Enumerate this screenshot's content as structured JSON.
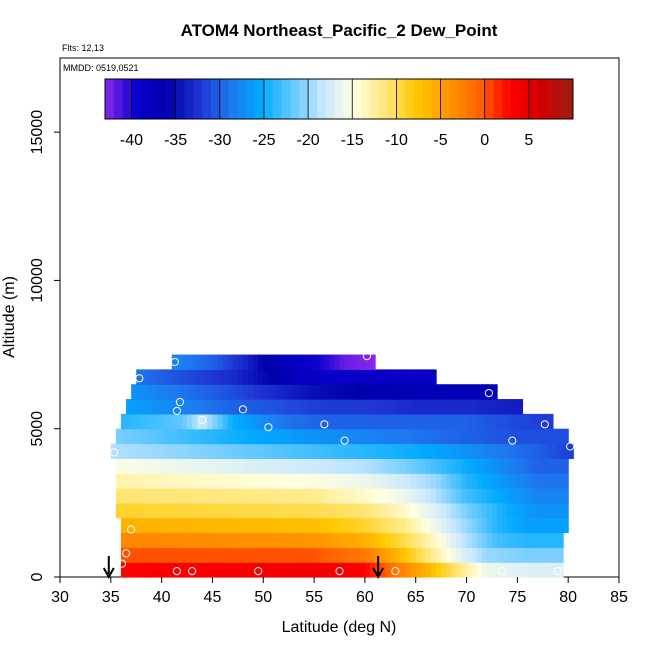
{
  "chart_data": {
    "type": "heatmap",
    "title": "ATOM4 Northeast_Pacific_2 Dew_Point",
    "flights_label": "Flts: 12,13",
    "date_label": "MMDD: 0519,0521",
    "xlabel": "Latitude (deg N)",
    "ylabel": "Altitude (m)",
    "xlim": [
      30,
      85
    ],
    "ylim": [
      0,
      17500
    ],
    "x_ticks": [
      "30",
      "35",
      "40",
      "45",
      "50",
      "55",
      "60",
      "65",
      "70",
      "75",
      "80",
      "85"
    ],
    "y_ticks": [
      "0",
      "5000",
      "10000",
      "15000"
    ],
    "colorbar": {
      "range": [
        -43,
        10
      ],
      "tick_labels": [
        "-40",
        "-35",
        "-30",
        "-25",
        "-20",
        "-15",
        "-10",
        "-5",
        "0",
        "5"
      ]
    },
    "layers": [
      {
        "alt": 250,
        "lat_start": 36,
        "lat_end": 79.5,
        "values": [
          [
            36,
            3
          ],
          [
            55,
            4
          ],
          [
            60,
            3
          ],
          [
            63,
            -2
          ],
          [
            66,
            -6
          ],
          [
            69,
            -11
          ],
          [
            72,
            -16
          ],
          [
            76,
            -17
          ],
          [
            79.5,
            -17
          ]
        ]
      },
      {
        "alt": 750,
        "lat_start": 36,
        "lat_end": 79.5,
        "values": [
          [
            36,
            0
          ],
          [
            55,
            0
          ],
          [
            60,
            -2
          ],
          [
            63,
            -6
          ],
          [
            66,
            -11
          ],
          [
            69,
            -16
          ],
          [
            72,
            -20
          ],
          [
            76,
            -21
          ],
          [
            79.5,
            -21
          ]
        ]
      },
      {
        "alt": 1250,
        "lat_start": 36,
        "lat_end": 79.5,
        "values": [
          [
            36,
            -3
          ],
          [
            55,
            -4
          ],
          [
            60,
            -6
          ],
          [
            64,
            -10
          ],
          [
            67,
            -14
          ],
          [
            70,
            -19
          ],
          [
            73,
            -23
          ],
          [
            76,
            -24
          ],
          [
            79.5,
            -24
          ]
        ]
      },
      {
        "alt": 1750,
        "lat_start": 36,
        "lat_end": 80,
        "values": [
          [
            36,
            -6
          ],
          [
            55,
            -7
          ],
          [
            60,
            -9
          ],
          [
            64,
            -12
          ],
          [
            67,
            -16
          ],
          [
            70,
            -20
          ],
          [
            73,
            -24
          ],
          [
            76,
            -26
          ],
          [
            80,
            -26
          ]
        ]
      },
      {
        "alt": 2250,
        "lat_start": 35.5,
        "lat_end": 80,
        "values": [
          [
            35.5,
            -9
          ],
          [
            55,
            -10
          ],
          [
            60,
            -11
          ],
          [
            64,
            -14
          ],
          [
            67,
            -17
          ],
          [
            70,
            -21
          ],
          [
            74,
            -25
          ],
          [
            77,
            -27
          ],
          [
            80,
            -27
          ]
        ]
      },
      {
        "alt": 2750,
        "lat_start": 35.5,
        "lat_end": 80,
        "values": [
          [
            35.5,
            -11
          ],
          [
            55,
            -12
          ],
          [
            60,
            -14
          ],
          [
            64,
            -16
          ],
          [
            67,
            -19
          ],
          [
            70,
            -23
          ],
          [
            74,
            -26
          ],
          [
            77,
            -28
          ],
          [
            80,
            -28
          ]
        ]
      },
      {
        "alt": 3250,
        "lat_start": 35.5,
        "lat_end": 80,
        "values": [
          [
            35.5,
            -13
          ],
          [
            55,
            -15
          ],
          [
            60,
            -16
          ],
          [
            64,
            -18
          ],
          [
            67,
            -20
          ],
          [
            70,
            -24
          ],
          [
            74,
            -27
          ],
          [
            77,
            -29
          ],
          [
            80,
            -29
          ]
        ]
      },
      {
        "alt": 3750,
        "lat_start": 35.5,
        "lat_end": 80,
        "values": [
          [
            35.5,
            -15
          ],
          [
            55,
            -18
          ],
          [
            60,
            -19
          ],
          [
            64,
            -21
          ],
          [
            67,
            -23
          ],
          [
            70,
            -25
          ],
          [
            74,
            -28
          ],
          [
            77,
            -30
          ],
          [
            80,
            -30
          ]
        ]
      },
      {
        "alt": 4250,
        "lat_start": 35,
        "lat_end": 80.5,
        "values": [
          [
            35,
            -19
          ],
          [
            45,
            -21
          ],
          [
            55,
            -23
          ],
          [
            60,
            -24
          ],
          [
            65,
            -25
          ],
          [
            70,
            -27
          ],
          [
            74,
            -29
          ],
          [
            77,
            -30
          ],
          [
            80.5,
            -32
          ]
        ]
      },
      {
        "alt": 4750,
        "lat_start": 35.5,
        "lat_end": 80,
        "values": [
          [
            35.5,
            -21
          ],
          [
            42,
            -23
          ],
          [
            48,
            -25
          ],
          [
            55,
            -27
          ],
          [
            60,
            -28
          ],
          [
            65,
            -29
          ],
          [
            70,
            -30
          ],
          [
            75,
            -31
          ],
          [
            80,
            -31
          ]
        ]
      },
      {
        "alt": 5250,
        "lat_start": 36,
        "lat_end": 78.5,
        "values": [
          [
            36,
            -24
          ],
          [
            42,
            -22
          ],
          [
            44,
            -18
          ],
          [
            47,
            -25
          ],
          [
            52,
            -29
          ],
          [
            56,
            -30
          ],
          [
            60,
            -30
          ],
          [
            65,
            -30
          ],
          [
            70,
            -30
          ],
          [
            74,
            -31
          ],
          [
            78.5,
            -32
          ]
        ]
      },
      {
        "alt": 5750,
        "lat_start": 36.5,
        "lat_end": 75.5,
        "values": [
          [
            36.5,
            -26
          ],
          [
            42,
            -28
          ],
          [
            47,
            -30
          ],
          [
            52,
            -31
          ],
          [
            56,
            -32
          ],
          [
            60,
            -32
          ],
          [
            65,
            -33
          ],
          [
            70,
            -33
          ],
          [
            75.5,
            -34
          ]
        ]
      },
      {
        "alt": 6250,
        "lat_start": 37,
        "lat_end": 73,
        "values": [
          [
            37,
            -27
          ],
          [
            42,
            -29
          ],
          [
            47,
            -31
          ],
          [
            51,
            -33
          ],
          [
            55,
            -35
          ],
          [
            60,
            -36
          ],
          [
            65,
            -37
          ],
          [
            70,
            -37
          ],
          [
            73,
            -37
          ]
        ]
      },
      {
        "alt": 6750,
        "lat_start": 37.5,
        "lat_end": 67,
        "values": [
          [
            37.5,
            -29
          ],
          [
            42,
            -31
          ],
          [
            47,
            -33
          ],
          [
            51,
            -36
          ],
          [
            54,
            -38
          ],
          [
            57,
            -39
          ],
          [
            60,
            -39
          ],
          [
            64,
            -39
          ],
          [
            67,
            -39
          ]
        ]
      },
      {
        "alt": 7250,
        "lat_start": 41,
        "lat_end": 61,
        "values": [
          [
            41,
            -28
          ],
          [
            45,
            -30
          ],
          [
            48,
            -33
          ],
          [
            51,
            -37
          ],
          [
            54,
            -39
          ],
          [
            56,
            -40
          ],
          [
            58,
            -42
          ],
          [
            61,
            -43
          ]
        ]
      }
    ],
    "observation_points": [
      [
        36.1,
        450
      ],
      [
        36.5,
        800
      ],
      [
        37,
        1600
      ],
      [
        41.5,
        200
      ],
      [
        43,
        200
      ],
      [
        49.5,
        200
      ],
      [
        57.5,
        200
      ],
      [
        63,
        200
      ],
      [
        73.5,
        200
      ],
      [
        79,
        200
      ],
      [
        35.3,
        4200
      ],
      [
        44,
        5300
      ],
      [
        41.5,
        5600
      ],
      [
        41.8,
        5900
      ],
      [
        48,
        5650
      ],
      [
        50.5,
        5050
      ],
      [
        56,
        5150
      ],
      [
        58,
        4600
      ],
      [
        74.5,
        4600
      ],
      [
        77.7,
        5150
      ],
      [
        80.2,
        4400
      ],
      [
        72.2,
        6200
      ],
      [
        37.8,
        6700
      ],
      [
        41.3,
        7250
      ],
      [
        60.2,
        7450
      ]
    ],
    "arrow_markers": [
      34.8,
      61.3
    ]
  },
  "colors": {
    "colormap": [
      "#8b28ec",
      "#0a00cd",
      "#0000aa",
      "#1e32d2",
      "#1e78ef",
      "#00aaff",
      "#64c8ff",
      "#c8e8ff",
      "#ffffe1",
      "#ffe678",
      "#ffc800",
      "#ff9600",
      "#ff6400",
      "#ff0000",
      "#d20000",
      "#9b1e14"
    ],
    "marker": "#ffffff",
    "axis": "#000000"
  }
}
